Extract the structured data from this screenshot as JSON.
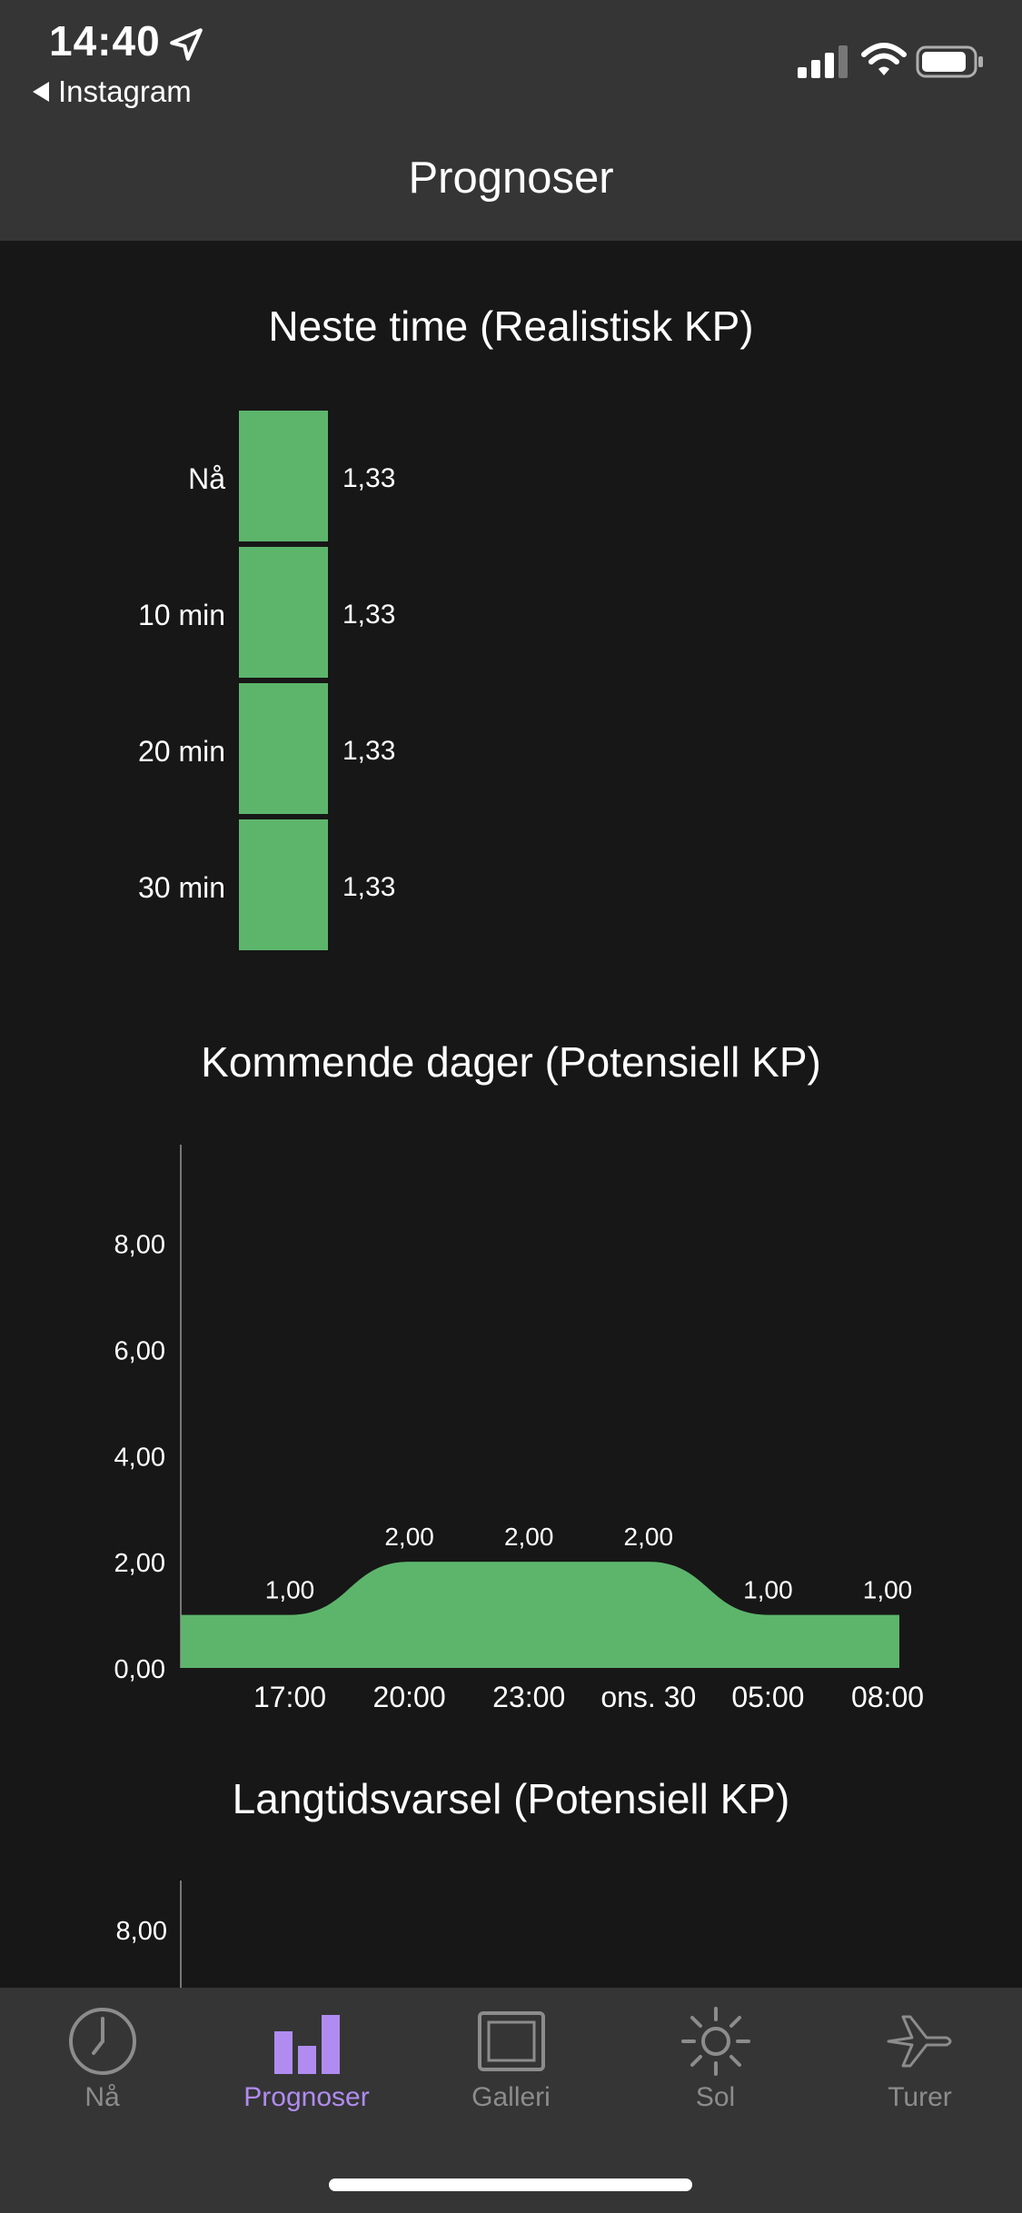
{
  "status": {
    "time": "14:40",
    "back_app": "Instagram"
  },
  "header": {
    "title": "Prognoser"
  },
  "next_hour": {
    "title": "Neste time (Realistisk KP)",
    "rows": [
      {
        "label": "Nå",
        "value": "1,33"
      },
      {
        "label": "10 min",
        "value": "1,33"
      },
      {
        "label": "20 min",
        "value": "1,33"
      },
      {
        "label": "30 min",
        "value": "1,33"
      }
    ]
  },
  "coming_days": {
    "title": "Kommende dager (Potensiell KP)"
  },
  "long_term": {
    "title": "Langtidsvarsel (Potensiell KP)",
    "y_tick_labels": [
      "8,00"
    ]
  },
  "chart_data": {
    "type": "area",
    "title": "Kommende dager (Potensiell KP)",
    "x": [
      "17:00",
      "20:00",
      "23:00",
      "ons. 30",
      "05:00",
      "08:00"
    ],
    "y": [
      1.0,
      2.0,
      2.0,
      2.0,
      1.0,
      1.0
    ],
    "data_labels": [
      "1,00",
      "2,00",
      "2,00",
      "2,00",
      "1,00",
      "1,00"
    ],
    "y_tick_labels": [
      "0,00",
      "2,00",
      "4,00",
      "6,00",
      "8,00"
    ],
    "ylim": [
      0,
      8
    ],
    "color": "#5db56c"
  },
  "tabs": [
    {
      "label": "Nå",
      "icon": "clock-icon",
      "active": false
    },
    {
      "label": "Prognoser",
      "icon": "bar-chart-icon",
      "active": true
    },
    {
      "label": "Galleri",
      "icon": "picture-frame-icon",
      "active": false
    },
    {
      "label": "Sol",
      "icon": "sun-icon",
      "active": false
    },
    {
      "label": "Turer",
      "icon": "airplane-icon",
      "active": false
    }
  ],
  "colors": {
    "accent": "#b08cf0",
    "bar": "#5db56c",
    "inactive": "#8c8c8c",
    "background": "#171717",
    "bar_bg": "#353535"
  }
}
